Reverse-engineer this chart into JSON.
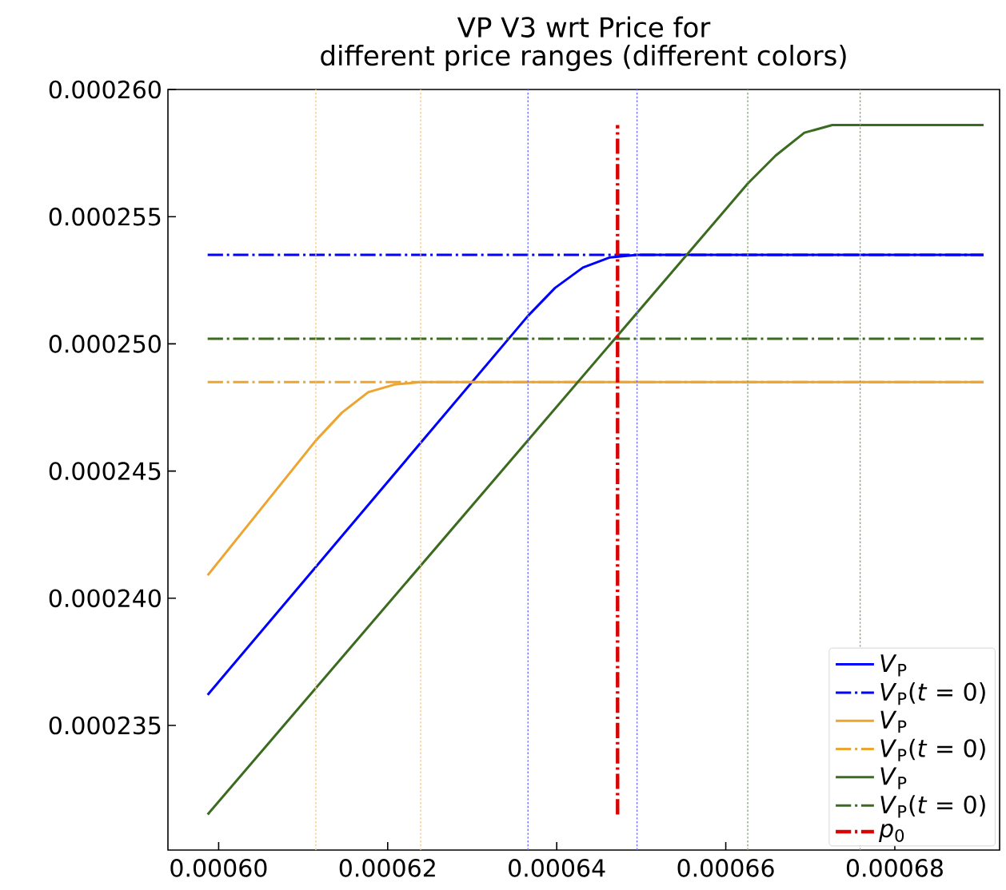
{
  "chart_data": {
    "type": "line",
    "title": "VP V3 wrt Price for",
    "subtitle": "different price ranges (different colors)",
    "xlim": [
      0.000594,
      0.0006924
    ],
    "ylim": [
      0.0002301,
      0.00026
    ],
    "xticks": [
      {
        "value": 0.0006,
        "label": "0.00060"
      },
      {
        "value": 0.00062,
        "label": "0.00062"
      },
      {
        "value": 0.00064,
        "label": "0.00064"
      },
      {
        "value": 0.00066,
        "label": "0.00066"
      },
      {
        "value": 0.00068,
        "label": "0.00068"
      }
    ],
    "yticks": [
      {
        "value": 0.000235,
        "label": "0.000235"
      },
      {
        "value": 0.00024,
        "label": "0.000240"
      },
      {
        "value": 0.000245,
        "label": "0.000245"
      },
      {
        "value": 0.00025,
        "label": "0.000250"
      },
      {
        "value": 0.000255,
        "label": "0.000255"
      },
      {
        "value": 0.00026,
        "label": "0.000260"
      }
    ],
    "legend": "bottom right",
    "series": [
      {
        "name": "*V*$_{P}$",
        "color": "#0000ff",
        "line_style": "solid",
        "x": [
          0.0005987,
          0.0006366,
          0.0006398,
          0.0006431,
          0.0006463,
          0.0006495,
          0.0006905
        ],
        "values": [
          0.0002362,
          0.0002511,
          0.0002522,
          0.000253,
          0.0002534,
          0.0002535,
          0.0002535
        ]
      },
      {
        "name": "*V*$_{P}$(*t* = 0)",
        "color": "#0000ff",
        "line_style": "dashdot",
        "x": [
          0.0005987,
          0.0006905
        ],
        "values": [
          0.0002535,
          0.0002535
        ]
      },
      {
        "name": "*V*$_{P}$",
        "color": "#eba530",
        "line_style": "solid",
        "x": [
          0.0005987,
          0.0006115,
          0.0006146,
          0.0006177,
          0.0006208,
          0.0006239,
          0.0006905
        ],
        "values": [
          0.0002409,
          0.0002462,
          0.0002473,
          0.0002481,
          0.0002484,
          0.0002485,
          0.0002485
        ]
      },
      {
        "name": "*V*$_{P}$(*t* = 0)",
        "color": "#eba530",
        "line_style": "dashdot",
        "x": [
          0.0005987,
          0.0006905
        ],
        "values": [
          0.0002485,
          0.0002485
        ]
      },
      {
        "name": "*V*$_{P}$",
        "color": "#3b6b1e",
        "line_style": "solid",
        "x": [
          0.0005987,
          0.0006626,
          0.0006659,
          0.0006693,
          0.0006726,
          0.0006759,
          0.0006905
        ],
        "values": [
          0.0002315,
          0.0002563,
          0.0002574,
          0.0002583,
          0.0002586,
          0.0002586,
          0.0002586
        ]
      },
      {
        "name": "*V*$_{P}$(*t* = 0)",
        "color": "#3b6b1e",
        "line_style": "dashdot",
        "x": [
          0.0005987,
          0.0006905
        ],
        "values": [
          0.0002502,
          0.0002502
        ]
      },
      {
        "name": "*p*$_{0}$",
        "color": "#dd0000",
        "line_style": "dashdot",
        "x": [
          0.0006472,
          0.0006472
        ],
        "values": [
          0.0002315,
          0.0002586
        ]
      }
    ],
    "ref_lines": [
      {
        "axis": "x",
        "value": 0.0006115,
        "color": "#f5cb85",
        "line_style": "dotted"
      },
      {
        "axis": "x",
        "value": 0.0006239,
        "color": "#f5cb85",
        "line_style": "dotted"
      },
      {
        "axis": "x",
        "value": 0.0006366,
        "color": "#6f6fff",
        "line_style": "dotted"
      },
      {
        "axis": "x",
        "value": 0.0006495,
        "color": "#6f6fff",
        "line_style": "dotted"
      },
      {
        "axis": "x",
        "value": 0.0006626,
        "color": "#8aa67a",
        "line_style": "dotted"
      },
      {
        "axis": "x",
        "value": 0.0006759,
        "color": "#8aa67a",
        "line_style": "dotted"
      }
    ]
  }
}
